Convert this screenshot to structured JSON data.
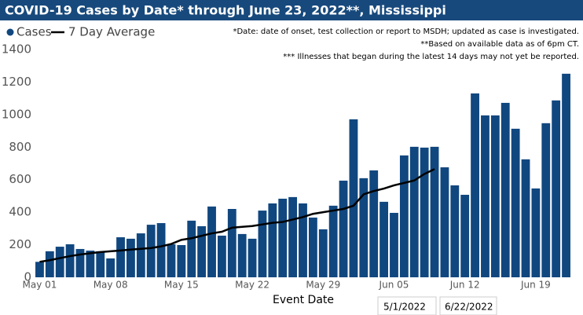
{
  "chart_data": {
    "type": "bar",
    "title": "COVID-19 Cases by Date* through June 23, 2022**, Mississippi",
    "notes": [
      "*Date: date of onset, test collection or report to MSDH; updated as case is investigated.",
      "**Based on available data as of 6pm CT.",
      "*** Illnesses that began during the latest 14 days may not yet be reported."
    ],
    "x_label": "Event Date",
    "date_range": [
      "5/1/2022",
      "6/22/2022"
    ],
    "categories": [
      "May 01",
      null,
      null,
      null,
      null,
      null,
      null,
      "May 08",
      null,
      null,
      null,
      null,
      null,
      null,
      "May 15",
      null,
      null,
      null,
      null,
      null,
      null,
      "May 22",
      null,
      null,
      null,
      null,
      null,
      null,
      "May 29",
      null,
      null,
      null,
      null,
      null,
      null,
      "Jun 05",
      null,
      null,
      null,
      null,
      null,
      null,
      "Jun 12",
      null,
      null,
      null,
      null,
      null,
      null,
      "Jun 19",
      null,
      null,
      null
    ],
    "series": [
      {
        "name": "Cases",
        "color": "#11477f",
        "values": [
          95,
          160,
          188,
          203,
          174,
          164,
          160,
          116,
          246,
          237,
          270,
          323,
          333,
          203,
          198,
          348,
          314,
          435,
          256,
          420,
          266,
          237,
          410,
          454,
          483,
          493,
          454,
          367,
          295,
          440,
          594,
          971,
          609,
          657,
          464,
          396,
          749,
          802,
          797,
          802,
          676,
          565,
          507,
          1130,
          995,
          995,
          1072,
          913,
          725,
          546,
          947,
          1087,
          1251
        ]
      },
      {
        "name": "7 Day Average",
        "color": "#000000",
        "type": "line",
        "values": [
          95,
          105,
          118,
          130,
          140,
          148,
          155,
          160,
          165,
          170,
          175,
          180,
          190,
          205,
          230,
          240,
          255,
          270,
          280,
          305,
          310,
          315,
          325,
          335,
          340,
          355,
          370,
          390,
          400,
          410,
          420,
          440,
          510,
          530,
          545,
          565,
          580,
          595,
          635,
          665,
          null,
          null,
          null,
          null,
          null,
          null,
          null,
          null,
          null,
          null,
          null,
          null,
          null
        ]
      }
    ],
    "ylim": [
      0,
      1400
    ],
    "yticks": [
      0,
      200,
      400,
      600,
      800,
      1000,
      1200,
      1400
    ],
    "grid": false
  }
}
